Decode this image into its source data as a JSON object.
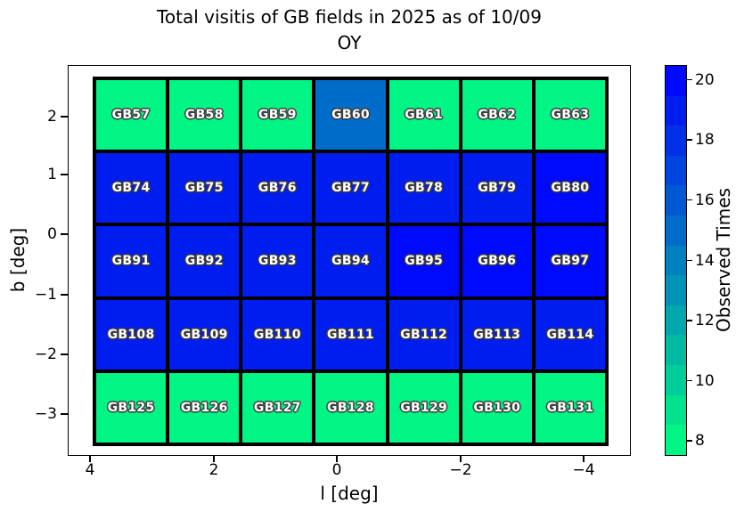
{
  "title": {
    "line1": "Total visitis of GB fields in 2025 as of 10/09",
    "line2": "OY"
  },
  "axes": {
    "xlabel": "l [deg]",
    "ylabel": "b [deg]",
    "x_tick_labels": [
      "4",
      "2",
      "0",
      "−2",
      "−4"
    ],
    "y_tick_labels": [
      "2",
      "1",
      "0",
      "−1",
      "−2",
      "−3"
    ]
  },
  "colorbar": {
    "label": "Observed Times",
    "tick_labels": [
      "20",
      "18",
      "16",
      "14",
      "12",
      "10",
      "8"
    ],
    "tick_values": [
      20,
      18,
      16,
      14,
      12,
      10,
      8
    ],
    "vmin": 7.5,
    "vmax": 20.5,
    "colormap": "winter_r",
    "min_color": "#00F584",
    "max_color": "#000AFA"
  },
  "style": {
    "background": "#ffffff",
    "grid_line_color": "#000000",
    "cell_label_color": "#ffffff",
    "cell_label_outline": "#3d3d3d"
  },
  "chart_data": {
    "type": "heatmap",
    "title": "Total visitis of GB fields in 2025 as of 10/09\nOY",
    "xlabel": "l [deg]",
    "ylabel": "b [deg]",
    "colorbar_label": "Observed Times",
    "x_ticks": [
      4,
      2,
      0,
      -2,
      -4
    ],
    "y_ticks": [
      2,
      1,
      0,
      -1,
      -2,
      -3
    ],
    "xlim": [
      4.4,
      -4.5
    ],
    "ylim": [
      -3.6,
      2.9
    ],
    "colorbar_ticks": [
      8,
      10,
      12,
      14,
      16,
      18,
      20
    ],
    "vmin": 7.5,
    "vmax": 20.5,
    "colormap": "winter_r",
    "legend_position": "right-colorbar",
    "grid": "cell-borders-black",
    "rows": [
      {
        "fields": [
          "GB57",
          "GB58",
          "GB59",
          "GB60",
          "GB61",
          "GB62",
          "GB63"
        ],
        "values": [
          8,
          8,
          8,
          15,
          8,
          8,
          8
        ]
      },
      {
        "fields": [
          "GB74",
          "GB75",
          "GB76",
          "GB77",
          "GB78",
          "GB79",
          "GB80"
        ],
        "values": [
          19,
          19,
          19,
          19,
          19,
          19,
          20
        ]
      },
      {
        "fields": [
          "GB91",
          "GB92",
          "GB93",
          "GB94",
          "GB95",
          "GB96",
          "GB97"
        ],
        "values": [
          19,
          19,
          19,
          19,
          20,
          20,
          20
        ]
      },
      {
        "fields": [
          "GB108",
          "GB109",
          "GB110",
          "GB111",
          "GB112",
          "GB113",
          "GB114"
        ],
        "values": [
          19,
          19,
          19,
          19,
          19,
          19,
          19
        ]
      },
      {
        "fields": [
          "GB125",
          "GB126",
          "GB127",
          "GB128",
          "GB129",
          "GB130",
          "GB131"
        ],
        "values": [
          8,
          8,
          8,
          8,
          8,
          8,
          8
        ]
      }
    ]
  }
}
